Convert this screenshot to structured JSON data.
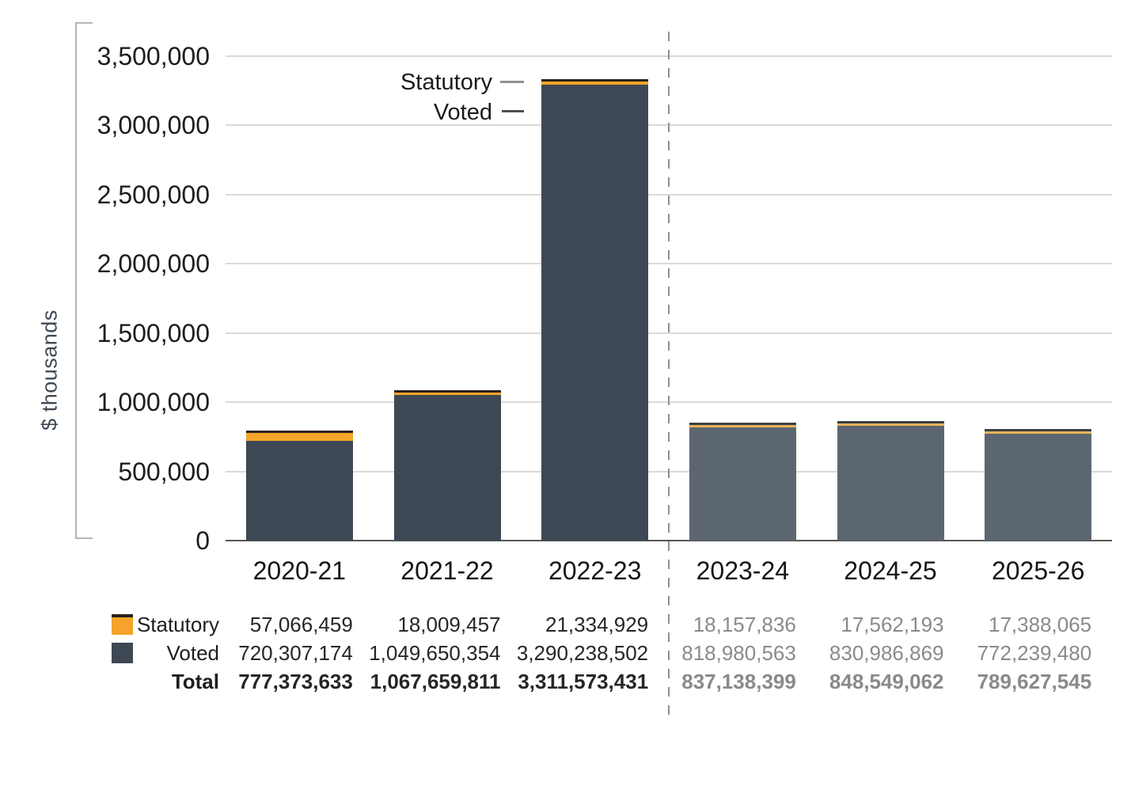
{
  "chart_data": {
    "type": "bar",
    "stacked": true,
    "title": "",
    "ylabel": "$ thousands",
    "xlabel": "",
    "grid": true,
    "ylim": [
      0,
      3500000
    ],
    "ytick_step": 500000,
    "ytick_labels": [
      "0",
      "500,000",
      "1,000,000",
      "1,500,000",
      "2,000,000",
      "2,500,000",
      "3,000,000",
      "3,500,000"
    ],
    "categories": [
      "2020-21",
      "2021-22",
      "2022-23",
      "2023-24",
      "2024-25",
      "2025-26"
    ],
    "forecast_start_index": 3,
    "unit_note": "bar heights plotted in $ thousands (raw values are dollars)",
    "series": [
      {
        "name": "Statutory",
        "values": [
          57066459,
          18009457,
          21334929,
          18157836,
          17562193,
          17388065
        ]
      },
      {
        "name": "Voted",
        "values": [
          720307174,
          1049650354,
          3290238502,
          818980563,
          830986869,
          772239480
        ]
      }
    ],
    "totals": [
      777373633,
      1067659811,
      3311573431,
      837138399,
      848549062,
      789627545
    ],
    "legend_position": "table rows below chart"
  },
  "annotations": {
    "statutory_label": "Statutory",
    "voted_label": "Voted"
  },
  "table": {
    "rows": [
      {
        "label": "Statutory",
        "swatch": "statutory",
        "bold": false,
        "values": [
          "57,066,459",
          "18,009,457",
          "21,334,929",
          "18,157,836",
          "17,562,193",
          "17,388,065"
        ]
      },
      {
        "label": "Voted",
        "swatch": "voted",
        "bold": false,
        "values": [
          "720,307,174",
          "1,049,650,354",
          "3,290,238,502",
          "818,980,563",
          "830,986,869",
          "772,239,480"
        ]
      },
      {
        "label": "Total",
        "swatch": null,
        "bold": true,
        "values": [
          "777,373,633",
          "1,067,659,811",
          "3,311,573,431",
          "837,138,399",
          "848,549,062",
          "789,627,545"
        ]
      }
    ]
  },
  "colors": {
    "statutory": "#F5A42B",
    "voted": "#3E4854",
    "statutory_forecast": "#E9B259",
    "voted_forecast": "#5C6671",
    "bar_cap": "#2B211A",
    "bar_cap_forecast": "#3A4046",
    "gridline": "#DADADA",
    "baseline": "#565656",
    "axis_bracket": "#B5B5B5",
    "divider": "#8F8F8F",
    "text_dark": "#262626",
    "text_forecast": "#8A8A8A",
    "anno_dash_statutory": "#8F8F8F",
    "anno_dash_voted": "#4F4F4F"
  }
}
